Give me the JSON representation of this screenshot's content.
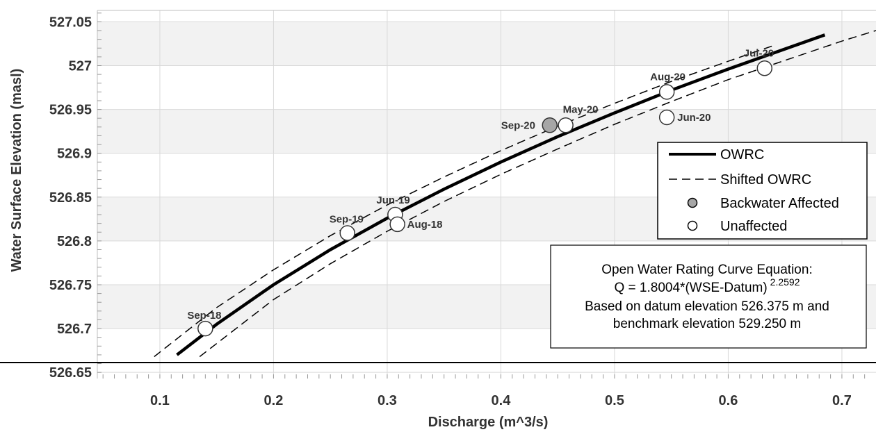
{
  "chart_data": {
    "type": "line",
    "xlabel": "Discharge (m^3/s)",
    "ylabel": "Water Surface Elevation (masl)",
    "xlim": [
      0.045,
      0.73
    ],
    "ylim": [
      526.643,
      527.063
    ],
    "x_ticks": [
      "0.1",
      "0.2",
      "0.3",
      "0.4",
      "0.5",
      "0.6",
      "0.7"
    ],
    "x_tick_values": [
      0.1,
      0.2,
      0.3,
      0.4,
      0.5,
      0.6,
      0.7
    ],
    "y_ticks": [
      "526.65",
      "526.7",
      "526.75",
      "526.8",
      "526.85",
      "526.9",
      "526.95",
      "527",
      "527.05"
    ],
    "y_tick_values": [
      526.65,
      526.7,
      526.75,
      526.8,
      526.85,
      526.9,
      526.95,
      527.0,
      527.05
    ],
    "grid": true,
    "series": [
      {
        "name": "OWRC",
        "style": "solid",
        "color": "#000000",
        "points": [
          {
            "x": 0.115,
            "y": 526.67
          },
          {
            "x": 0.15,
            "y": 526.705
          },
          {
            "x": 0.2,
            "y": 526.75
          },
          {
            "x": 0.25,
            "y": 526.79
          },
          {
            "x": 0.3,
            "y": 526.826
          },
          {
            "x": 0.35,
            "y": 526.859
          },
          {
            "x": 0.4,
            "y": 526.89
          },
          {
            "x": 0.45,
            "y": 526.919
          },
          {
            "x": 0.5,
            "y": 526.946
          },
          {
            "x": 0.55,
            "y": 526.972
          },
          {
            "x": 0.6,
            "y": 526.996
          },
          {
            "x": 0.65,
            "y": 527.019
          },
          {
            "x": 0.685,
            "y": 527.035
          }
        ]
      },
      {
        "name": "Shifted OWRC",
        "style": "dashed",
        "color": "#000000",
        "points": [
          {
            "x": 0.095,
            "y": 526.668
          },
          {
            "x": 0.15,
            "y": 526.724
          },
          {
            "x": 0.2,
            "y": 526.767
          },
          {
            "x": 0.25,
            "y": 526.806
          },
          {
            "x": 0.3,
            "y": 526.841
          },
          {
            "x": 0.35,
            "y": 526.873
          },
          {
            "x": 0.4,
            "y": 526.903
          },
          {
            "x": 0.45,
            "y": 526.931
          },
          {
            "x": 0.5,
            "y": 526.957
          },
          {
            "x": 0.55,
            "y": 526.982
          },
          {
            "x": 0.6,
            "y": 527.005
          },
          {
            "x": 0.64,
            "y": 527.023
          }
        ]
      },
      {
        "name": "Shifted OWRC (lower)",
        "style": "dashed",
        "color": "#000000",
        "points": [
          {
            "x": 0.135,
            "y": 526.668
          },
          {
            "x": 0.2,
            "y": 526.733
          },
          {
            "x": 0.25,
            "y": 526.774
          },
          {
            "x": 0.3,
            "y": 526.811
          },
          {
            "x": 0.35,
            "y": 526.845
          },
          {
            "x": 0.4,
            "y": 526.876
          },
          {
            "x": 0.45,
            "y": 526.905
          },
          {
            "x": 0.5,
            "y": 526.933
          },
          {
            "x": 0.55,
            "y": 526.959
          },
          {
            "x": 0.6,
            "y": 526.984
          },
          {
            "x": 0.65,
            "y": 527.006
          },
          {
            "x": 0.7,
            "y": 527.028
          },
          {
            "x": 0.73,
            "y": 527.04
          }
        ]
      }
    ],
    "observations": [
      {
        "label": "Sep-18",
        "x": 0.14,
        "y": 526.7,
        "category": "Unaffected"
      },
      {
        "label": "Sep-19",
        "x": 0.265,
        "y": 526.809,
        "category": "Unaffected"
      },
      {
        "label": "Jun-19",
        "x": 0.307,
        "y": 526.83,
        "category": "Unaffected"
      },
      {
        "label": "Aug-18",
        "x": 0.309,
        "y": 526.819,
        "category": "Unaffected"
      },
      {
        "label": "Sep-20",
        "x": 0.443,
        "y": 526.932,
        "category": "Backwater Affected"
      },
      {
        "label": "May-20",
        "x": 0.457,
        "y": 526.932,
        "category": "Unaffected"
      },
      {
        "label": "Jun-20",
        "x": 0.546,
        "y": 526.941,
        "category": "Unaffected"
      },
      {
        "label": "Aug-20",
        "x": 0.546,
        "y": 526.97,
        "category": "Unaffected"
      },
      {
        "label": "Jul-20",
        "x": 0.632,
        "y": 526.997,
        "category": "Unaffected"
      }
    ],
    "legend": {
      "placement": "right",
      "items": [
        {
          "label": "OWRC",
          "symbol": "solid-line"
        },
        {
          "label": "Shifted OWRC",
          "symbol": "dashed-line"
        },
        {
          "label": "Backwater Affected",
          "symbol": "filled-circle"
        },
        {
          "label": "Unaffected",
          "symbol": "open-circle"
        }
      ]
    },
    "annotation": {
      "line1": "Open Water Rating Curve Equation:",
      "line2_main": "Q = 1.8004*(WSE-Datum)",
      "line2_exponent": "2.2592",
      "line3": "Based on datum elevation 526.375 m and",
      "line4": "benchmark elevation 529.250 m"
    },
    "colors": {
      "backwater_fill": "#a6a6a6",
      "unaffected_fill": "#ffffff",
      "band": "#f2f2f2",
      "grid": "#d9d9d9"
    }
  }
}
